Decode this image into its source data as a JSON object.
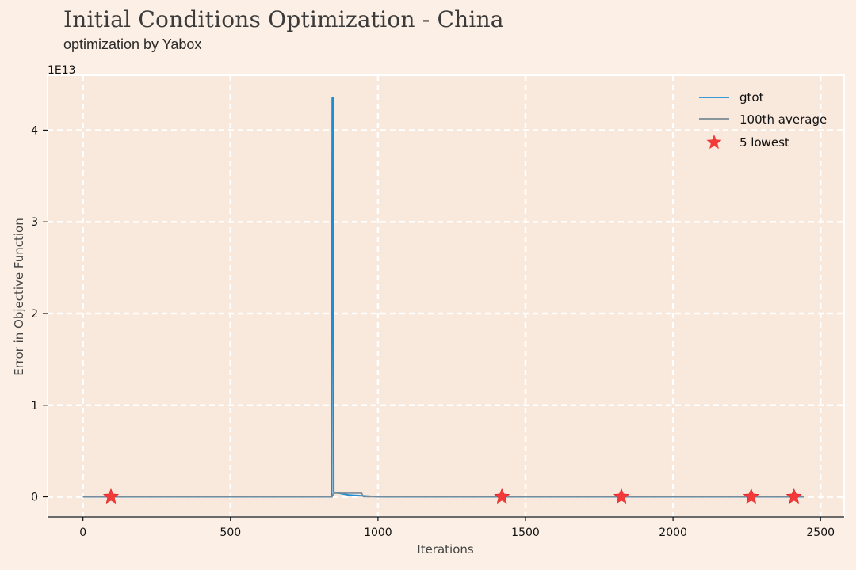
{
  "title": "Initial Conditions Optimization - China",
  "subtitle": "optimization by Yabox",
  "chart_data": {
    "type": "line",
    "xlabel": "Iterations",
    "ylabel": "Error in Objective Function",
    "y_scale_label": "1E13",
    "xlim": [
      -120,
      2580
    ],
    "ylim": [
      -0.22,
      4.6
    ],
    "x_ticks": [
      0,
      500,
      1000,
      1500,
      2000,
      2500
    ],
    "y_ticks": [
      0,
      1,
      2,
      3,
      4
    ],
    "grid": true,
    "legend_position": "top-right",
    "colors": {
      "gtot": "#1b8fd6",
      "average": "#7a8a96",
      "lowest": "#f23a3a"
    },
    "series": [
      {
        "name": "gtot",
        "x": [
          0,
          200,
          400,
          600,
          800,
          843,
          845,
          848,
          850,
          900,
          1000,
          1200,
          1400,
          1600,
          1800,
          2000,
          2200,
          2445
        ],
        "values": [
          0,
          0,
          0,
          0,
          0,
          0,
          4.35,
          4.35,
          0.05,
          0.02,
          0,
          0,
          0,
          0,
          0,
          0,
          0,
          0
        ]
      },
      {
        "name": "100th average",
        "x": [
          0,
          845,
          850,
          945,
          950,
          1100,
          1300,
          1500,
          1700,
          1900,
          2100,
          2300,
          2445
        ],
        "values": [
          0,
          0,
          0.04,
          0.04,
          0,
          0,
          0,
          0,
          0,
          0,
          0,
          0,
          0
        ]
      }
    ],
    "lowest": {
      "name": "5 lowest",
      "x": [
        95,
        1420,
        1825,
        2265,
        2410
      ],
      "values": [
        0,
        0,
        0,
        0,
        0
      ]
    }
  }
}
